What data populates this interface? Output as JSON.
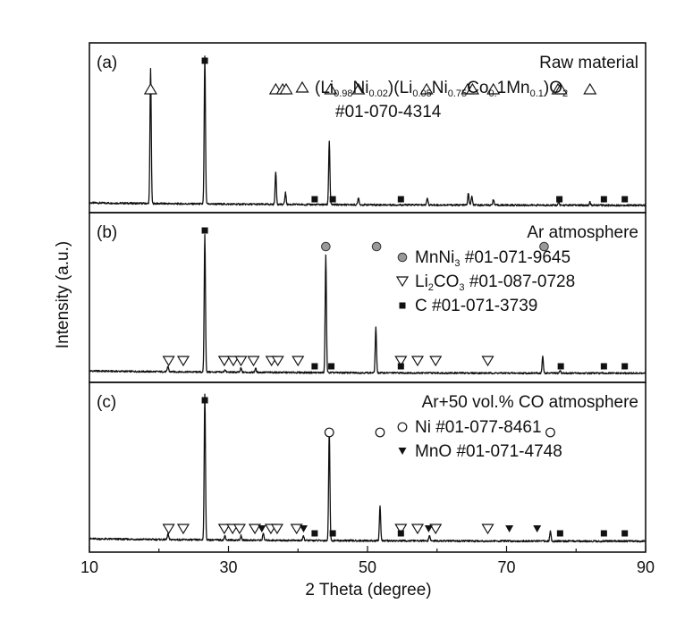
{
  "chart_data": {
    "type": "line",
    "xlabel": "2 Theta (degree)",
    "ylabel": "Intensity (a.u.)",
    "xlim": [
      10,
      90
    ],
    "xticks": [
      "10",
      "30",
      "50",
      "70",
      "90"
    ],
    "panels": [
      {
        "tag": "(a)",
        "atmosphere": "Raw material",
        "legend": [
          {
            "marker": "triangle-up-open",
            "parts": [
              [
                "(Li",
                ""
              ],
              [
                "0.98",
                "sub"
              ],
              [
                "Ni",
                ""
              ],
              [
                "0.02",
                "sub"
              ],
              [
                ")(Li",
                ""
              ],
              [
                "0.05",
                "sub"
              ],
              [
                "Ni",
                ""
              ],
              [
                "0.75",
                "sub"
              ],
              [
                "Co",
                ""
              ],
              [
                "0.",
                "sub"
              ],
              [
                "1Mn",
                ""
              ],
              [
                "0.1",
                "sub"
              ],
              [
                ")O",
                ""
              ],
              [
                "2",
                "sub"
              ]
            ]
          },
          {
            "marker": "none",
            "parts": [
              [
                "#01-070-4314",
                ""
              ]
            ]
          }
        ],
        "peaks": [
          [
            18.8,
            0.92
          ],
          [
            26.6,
            1.0
          ],
          [
            36.8,
            0.22
          ],
          [
            38.2,
            0.08
          ],
          [
            44.5,
            0.43
          ],
          [
            48.7,
            0.05
          ],
          [
            58.6,
            0.05
          ],
          [
            64.5,
            0.08
          ],
          [
            65.0,
            0.06
          ],
          [
            68.1,
            0.04
          ],
          [
            77.5,
            0.02
          ],
          [
            82.0,
            0.02
          ]
        ],
        "markers": [
          {
            "type": "triangle-up-open",
            "x": [
              18.8,
              36.8,
              37.8,
              38.3,
              44.7,
              48.7,
              58.5,
              64.4,
              65.1,
              68.1,
              77.4,
              77.8,
              82.0
            ]
          },
          {
            "type": "square-filled",
            "x": [
              26.6,
              42.4,
              45.0,
              54.8,
              77.6,
              84.0,
              87.0
            ]
          }
        ]
      },
      {
        "tag": "(b)",
        "atmosphere": "Ar atmosphere",
        "legend": [
          {
            "marker": "circle-gray",
            "parts": [
              [
                "MnNi",
                ""
              ],
              [
                "3",
                "sub"
              ],
              [
                " #01-071-9645",
                ""
              ]
            ]
          },
          {
            "marker": "triangle-down-open",
            "parts": [
              [
                "Li",
                ""
              ],
              [
                "2",
                "sub"
              ],
              [
                "CO",
                ""
              ],
              [
                "3",
                "sub"
              ],
              [
                " #01-087-0728",
                ""
              ]
            ]
          },
          {
            "marker": "square-filled",
            "parts": [
              [
                "C #01-071-3739",
                ""
              ]
            ]
          }
        ],
        "peaks": [
          [
            21.3,
            0.04
          ],
          [
            26.6,
            1.0
          ],
          [
            29.5,
            0.02
          ],
          [
            31.8,
            0.03
          ],
          [
            33.9,
            0.03
          ],
          [
            44.0,
            0.85
          ],
          [
            51.2,
            0.33
          ],
          [
            75.2,
            0.12
          ],
          [
            77.7,
            0.02
          ]
        ],
        "markers": [
          {
            "type": "circle-gray",
            "x": [
              44.0,
              51.3,
              75.4
            ]
          },
          {
            "type": "triangle-down-open",
            "x": [
              21.4,
              23.5,
              29.4,
              30.7,
              31.8,
              33.6,
              36.2,
              37.1,
              40.0,
              54.8,
              57.2,
              59.8,
              67.3
            ]
          },
          {
            "type": "square-filled",
            "x": [
              26.6,
              42.4,
              44.8,
              54.8,
              77.8,
              84.0,
              87.0
            ]
          }
        ]
      },
      {
        "tag": "(c)",
        "atmosphere": "Ar+50 vol.% CO atmosphere",
        "legend": [
          {
            "marker": "circle-open",
            "parts": [
              [
                "Ni #01-077-8461",
                ""
              ]
            ]
          },
          {
            "marker": "triangle-down-filled",
            "parts": [
              [
                "MnO #01-071-4748",
                ""
              ]
            ]
          }
        ],
        "peaks": [
          [
            21.3,
            0.04
          ],
          [
            26.6,
            1.0
          ],
          [
            29.5,
            0.03
          ],
          [
            31.8,
            0.03
          ],
          [
            35.0,
            0.05
          ],
          [
            40.8,
            0.03
          ],
          [
            44.5,
            0.76
          ],
          [
            51.8,
            0.24
          ],
          [
            58.9,
            0.04
          ],
          [
            76.3,
            0.07
          ]
        ],
        "markers": [
          {
            "type": "circle-open",
            "x": [
              44.5,
              51.8,
              76.3
            ]
          },
          {
            "type": "triangle-down-open",
            "x": [
              21.4,
              23.5,
              29.4,
              30.6,
              31.6,
              33.8,
              36.1,
              37.0,
              39.8,
              54.8,
              57.2,
              59.8,
              67.3
            ]
          },
          {
            "type": "triangle-down-filled",
            "x": [
              34.8,
              40.8,
              58.8,
              70.4,
              74.4
            ]
          },
          {
            "type": "square-filled",
            "x": [
              26.6,
              42.4,
              45.0,
              54.8,
              77.7,
              84.0,
              87.0
            ]
          }
        ]
      }
    ]
  }
}
